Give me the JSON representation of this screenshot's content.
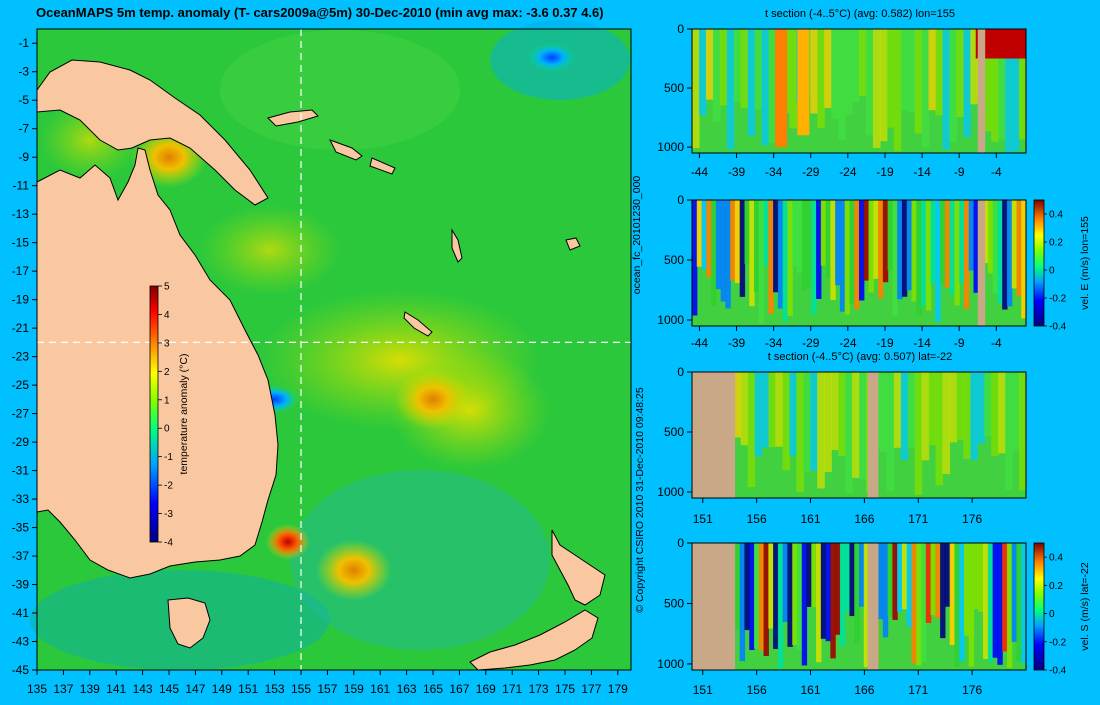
{
  "header": {
    "title": "OceanMAPS 5m temp. anomaly (T- cars2009a@5m) 30-Dec-2010 (min avg max: -3.6 0.37 4.6)"
  },
  "side_labels": {
    "run_id": "ocean_fc_20101230_000",
    "copyright": "© Copyright CSIRO 2010   31-Dec-2010 09:48:25"
  },
  "colors": {
    "page_background": "#00C0FF",
    "land": "#FAC8A0",
    "section_land": "#C8A886"
  },
  "chart_data": [
    {
      "type": "heatmap",
      "title": "OceanMAPS 5m temp. anomaly (T- cars2009a@5m) 30-Dec-2010 (min avg max: -3.6 0.37 4.6)",
      "xlim": [
        135,
        180
      ],
      "ylim": [
        -45,
        0
      ],
      "x_ticks": [
        "135",
        "137",
        "139",
        "141",
        "143",
        "145",
        "147",
        "149",
        "151",
        "153",
        "155",
        "157",
        "159",
        "161",
        "163",
        "165",
        "167",
        "169",
        "171",
        "173",
        "175",
        "177",
        "179"
      ],
      "y_ticks": [
        "-1",
        "-3",
        "-5",
        "-7",
        "-9",
        "-11",
        "-13",
        "-15",
        "-17",
        "-19",
        "-21",
        "-23",
        "-25",
        "-27",
        "-29",
        "-31",
        "-33",
        "-35",
        "-37",
        "-39",
        "-41",
        "-43",
        "-45"
      ],
      "section_lines": {
        "lon": 155,
        "lat": -22
      },
      "stats": {
        "min": -3.6,
        "avg": 0.37,
        "max": 4.6
      },
      "colorbar": {
        "label": "temperature anomaly (°C)",
        "range": [
          -4,
          5
        ],
        "ticks": [
          "5",
          "4",
          "3",
          "2",
          "1",
          "0",
          "-1",
          "-2",
          "-3",
          "-4"
        ]
      },
      "warm_patches": [
        {
          "lon": 165,
          "lat": -26,
          "anomaly": 3
        },
        {
          "lon": 154,
          "lat": -36,
          "anomaly": 4.5
        },
        {
          "lon": 145,
          "lat": -9,
          "anomaly": 2.5
        },
        {
          "lon": 159,
          "lat": -38,
          "anomaly": 2.5
        }
      ],
      "cold_patches": [
        {
          "lon": 174,
          "lat": -2,
          "anomaly": -3
        },
        {
          "lon": 153,
          "lat": -26,
          "anomaly": -2
        }
      ]
    },
    {
      "type": "heatmap",
      "title": "t section (-4..5°C) (avg: 0.582) lon=155",
      "x_ticks": [
        "-44",
        "-39",
        "-34",
        "-29",
        "-24",
        "-19",
        "-14",
        "-9",
        "-4"
      ],
      "y_ticks": [
        "0",
        "500",
        "1000"
      ],
      "x_range": [
        -45,
        0
      ],
      "depth_range": [
        0,
        1050
      ],
      "avg": 0.582,
      "land_bands": [
        {
          "from": -6.5,
          "to": -5.5
        }
      ],
      "features": [
        {
          "x": -33,
          "anomaly": 3,
          "depth_to": 1000
        },
        {
          "x": -30,
          "anomaly": 2.5,
          "depth_to": 900
        },
        {
          "x": -3,
          "anomaly": 4.5,
          "depth_to": 250
        }
      ]
    },
    {
      "type": "heatmap",
      "title": "",
      "x_ticks": [
        "-44",
        "-39",
        "-34",
        "-29",
        "-24",
        "-19",
        "-14",
        "-9",
        "-4"
      ],
      "y_ticks": [
        "0",
        "500",
        "1000"
      ],
      "x_range": [
        -45,
        0
      ],
      "depth_range": [
        0,
        1050
      ],
      "ylabel": "vel. E (m/s) lon=155",
      "colorbar": {
        "range": [
          -0.4,
          0.5
        ],
        "ticks": [
          "0.4",
          "0.2",
          "0",
          "-0.2",
          "-0.4"
        ]
      },
      "land_bands": [
        {
          "from": -6.5,
          "to": -5.5
        }
      ]
    },
    {
      "type": "heatmap",
      "title": "t section (-4..5°C) (avg: 0.507) lat=-22",
      "x_ticks": [
        "151",
        "156",
        "161",
        "166",
        "171",
        "176"
      ],
      "y_ticks": [
        "0",
        "500",
        "1000"
      ],
      "x_range": [
        150,
        181
      ],
      "depth_range": [
        0,
        1050
      ],
      "avg": 0.507,
      "land_bands": [
        {
          "from": 150,
          "to": 154
        },
        {
          "from": 166.3,
          "to": 167.3
        }
      ]
    },
    {
      "type": "heatmap",
      "title": "",
      "x_ticks": [
        "151",
        "156",
        "161",
        "166",
        "171",
        "176"
      ],
      "y_ticks": [
        "0",
        "500",
        "1000"
      ],
      "x_range": [
        150,
        181
      ],
      "depth_range": [
        0,
        1050
      ],
      "ylabel": "vel. S (m/s) lat=-22",
      "colorbar": {
        "range": [
          -0.4,
          0.5
        ],
        "ticks": [
          "0.4",
          "0.2",
          "0",
          "-0.2",
          "-0.4"
        ]
      },
      "land_bands": [
        {
          "from": 150,
          "to": 154
        },
        {
          "from": 166.3,
          "to": 167.3
        }
      ]
    }
  ]
}
